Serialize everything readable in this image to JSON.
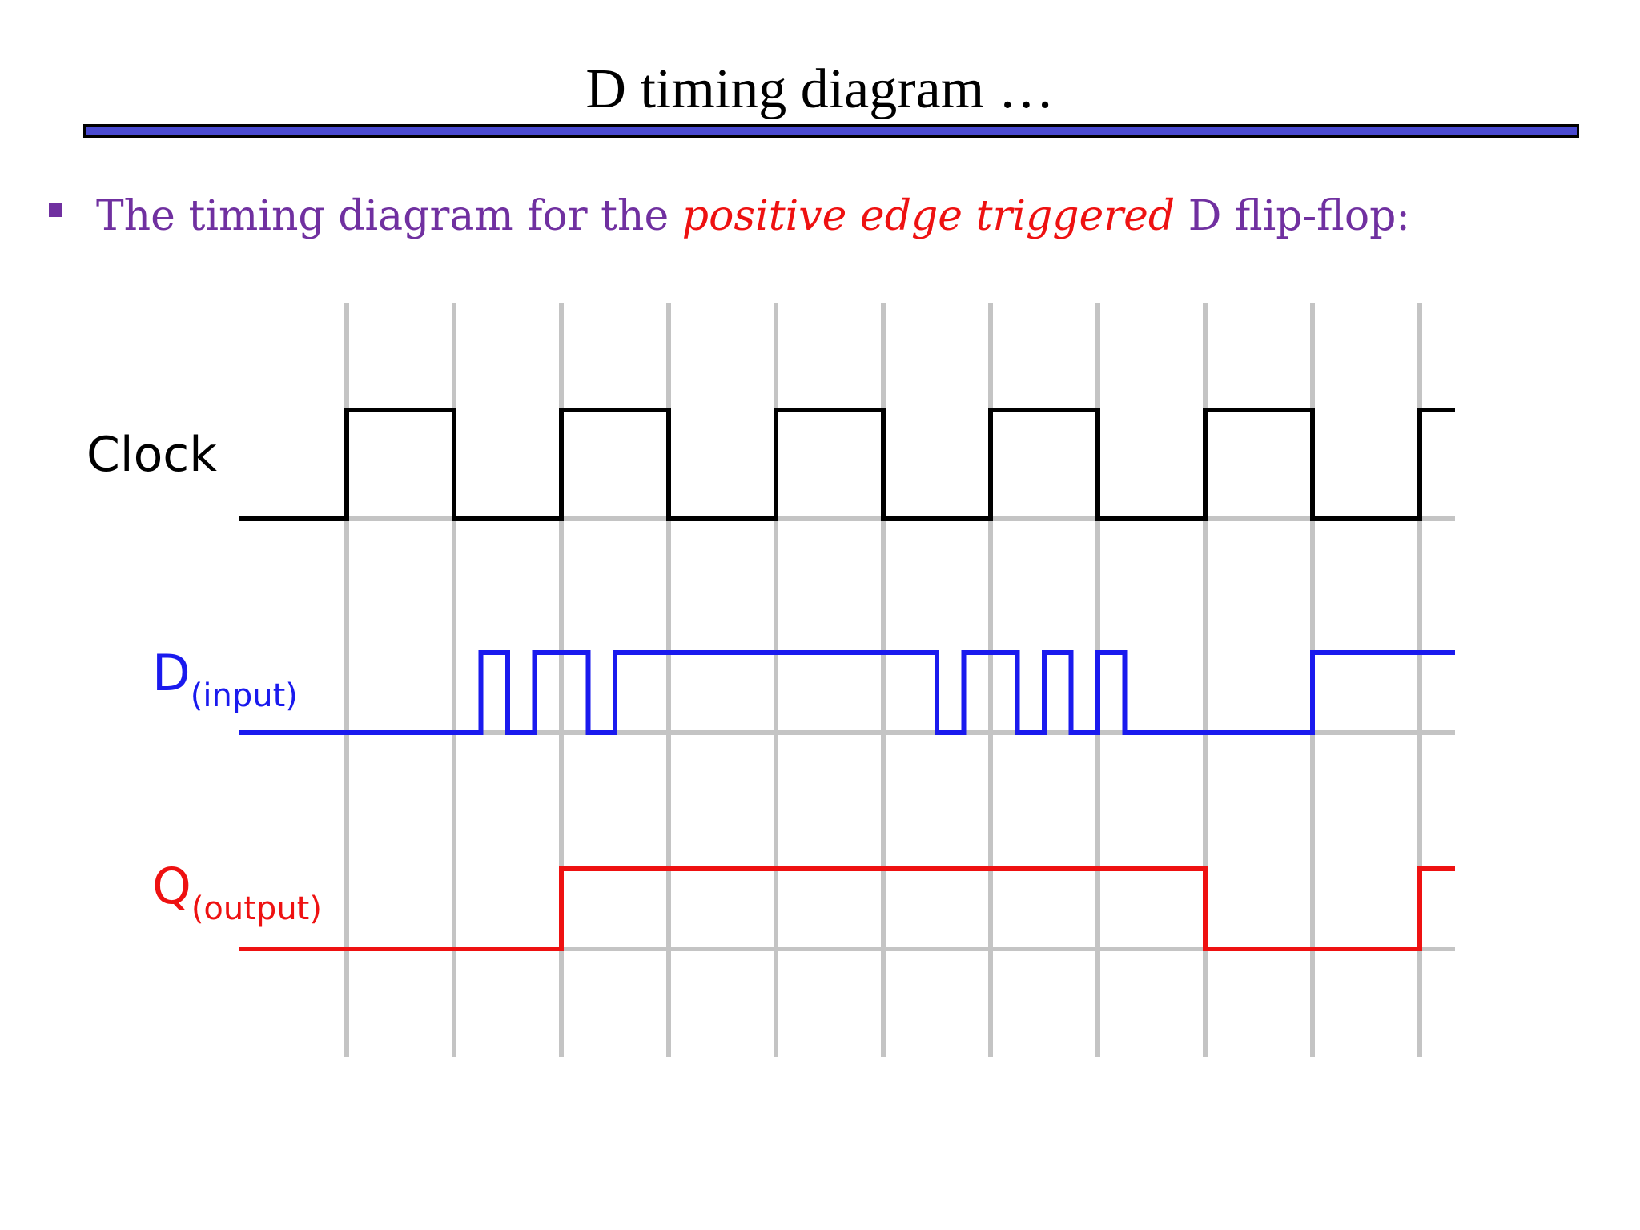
{
  "slide": {
    "title": "D timing diagram …",
    "bullet": {
      "pre": "The timing diagram for the ",
      "emphasis": "positive edge triggered",
      "post": " D flip-flop:"
    }
  },
  "timing_diagram": {
    "colors": {
      "grid": "#c4c4c4",
      "clock": "#000000",
      "d_input": "#1a1aee",
      "q_output": "#ee1111",
      "title_rule": "#4a4ad0",
      "bullet_text": "#7030a0",
      "emphasis_text": "#ee1111"
    },
    "time_range": [
      -1,
      11
    ],
    "grid_lines_at": [
      0,
      1,
      2,
      3,
      4,
      5,
      6,
      7,
      8,
      9,
      10
    ],
    "signals": [
      {
        "key": "clock",
        "label": "Clock",
        "subscript": "",
        "color": "#000000",
        "initial": 0,
        "transitions": [
          0,
          1,
          2,
          3,
          4,
          5,
          6,
          7,
          8,
          9,
          10
        ]
      },
      {
        "key": "d",
        "label": "D",
        "subscript": "(input)",
        "color": "#1a1aee",
        "initial": 0,
        "transitions": [
          1.25,
          1.5,
          1.75,
          2.25,
          2.5,
          5.5,
          5.75,
          6.25,
          6.5,
          6.75,
          7.0,
          7.25,
          9
        ]
      },
      {
        "key": "q",
        "label": "Q",
        "subscript": "(output)",
        "color": "#ee1111",
        "initial": 0,
        "transitions": [
          2,
          8,
          10
        ]
      }
    ]
  }
}
